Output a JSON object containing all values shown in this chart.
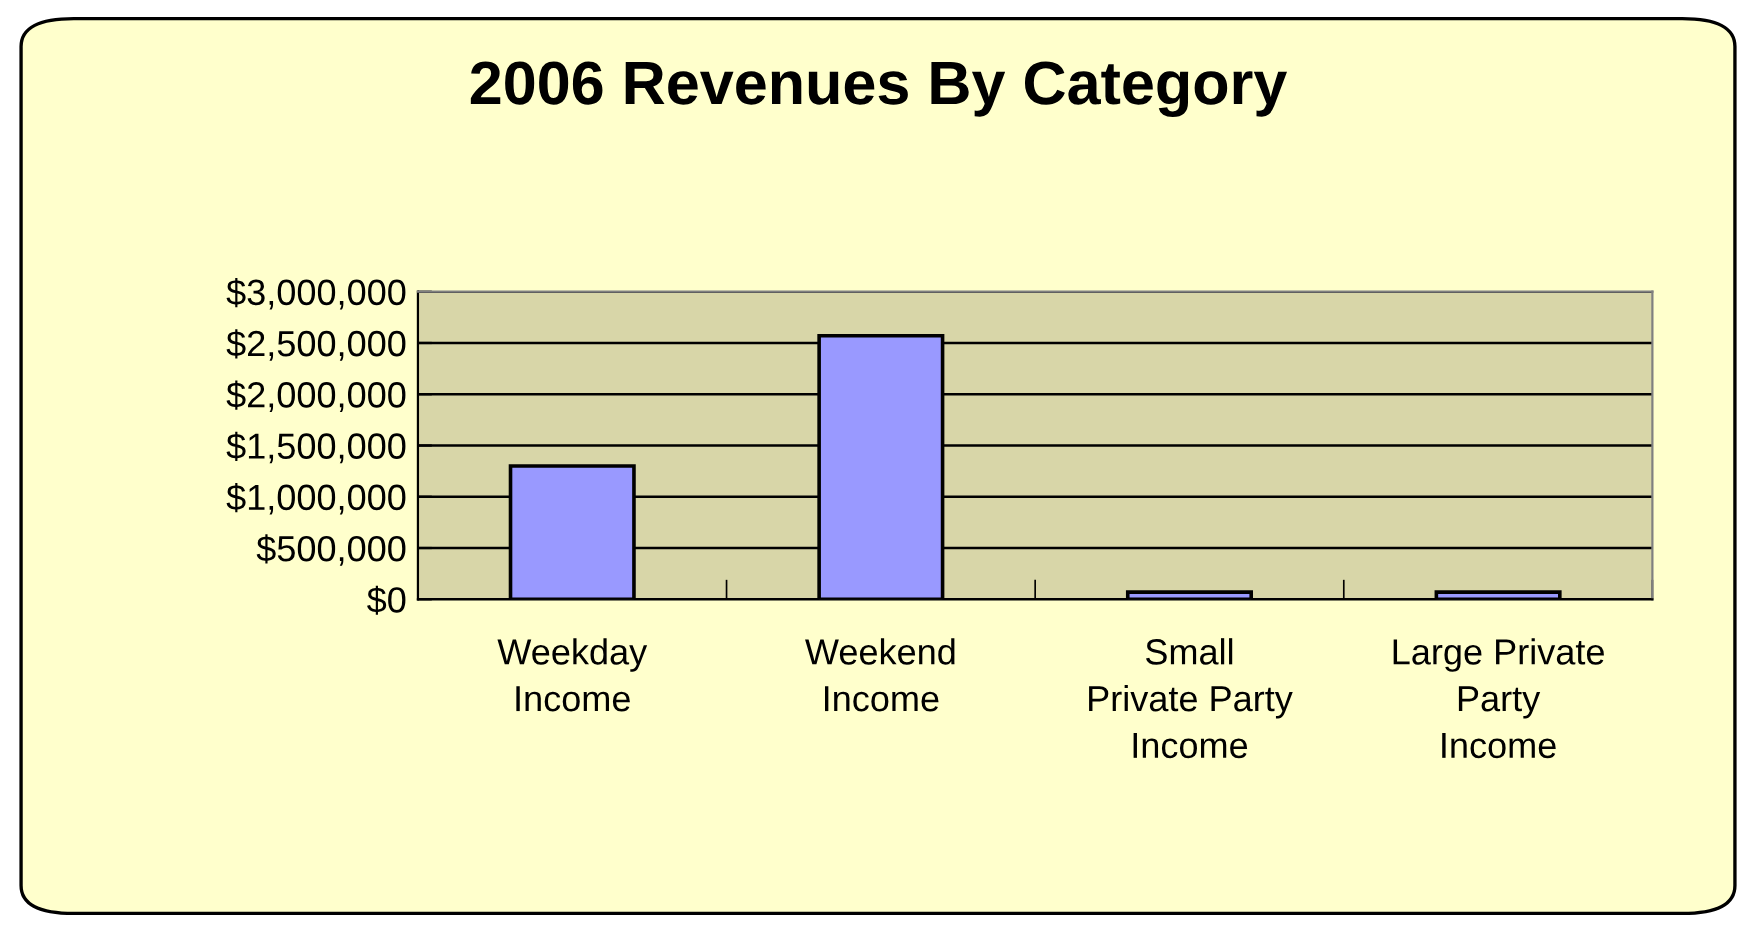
{
  "chart_data": {
    "type": "bar",
    "title": "2006 Revenues By Category",
    "categories": [
      "Weekday\nIncome",
      "Weekend\nIncome",
      "Small\nPrivate Party\nIncome",
      "Large Private\nParty\nIncome"
    ],
    "values": [
      1300000,
      2570000,
      70000,
      70000
    ],
    "color": "#9999ff",
    "ylim": [
      0,
      3000000
    ],
    "yticks": [
      {
        "value": 0,
        "label": "$0"
      },
      {
        "value": 500000,
        "label": "$500,000"
      },
      {
        "value": 1000000,
        "label": "$1,000,000"
      },
      {
        "value": 1500000,
        "label": "$1,500,000"
      },
      {
        "value": 2000000,
        "label": "$2,000,000"
      },
      {
        "value": 2500000,
        "label": "$2,500,000"
      },
      {
        "value": 3000000,
        "label": "$3,000,000"
      }
    ],
    "grid": "y",
    "legend": false
  }
}
